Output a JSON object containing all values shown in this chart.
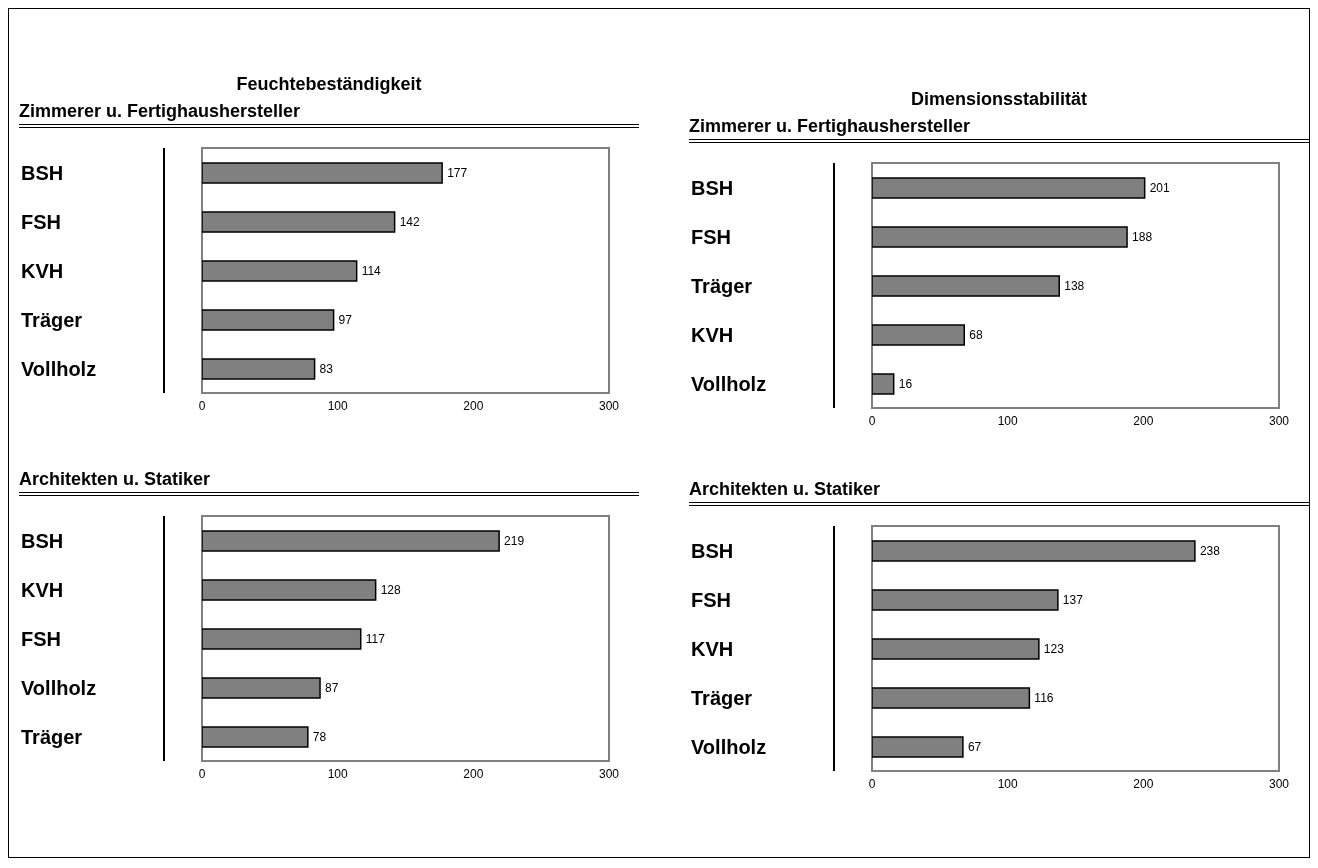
{
  "chart_data": [
    {
      "type": "bar",
      "orientation": "horizontal",
      "title": "Feuchtebeständigkeit",
      "subtitle": "Zimmerer u. Fertighaushersteller",
      "categories": [
        "BSH",
        "FSH",
        "KVH",
        "Träger",
        "Vollholz"
      ],
      "values": [
        177,
        142,
        114,
        97,
        83
      ],
      "color": "#808080",
      "xlim": [
        0,
        300
      ],
      "xticks": [
        0,
        100,
        200,
        300
      ],
      "data_labels": true
    },
    {
      "type": "bar",
      "orientation": "horizontal",
      "title": "Dimensionsstabilität",
      "subtitle": "Zimmerer u. Fertighaushersteller",
      "categories": [
        "BSH",
        "FSH",
        "Träger",
        "KVH",
        "Vollholz"
      ],
      "values": [
        201,
        188,
        138,
        68,
        16
      ],
      "color": "#808080",
      "xlim": [
        0,
        300
      ],
      "xticks": [
        0,
        100,
        200,
        300
      ],
      "data_labels": true
    },
    {
      "type": "bar",
      "orientation": "horizontal",
      "subtitle": "Architekten u. Statiker",
      "categories": [
        "BSH",
        "KVH",
        "FSH",
        "Vollholz",
        "Träger"
      ],
      "values": [
        219,
        128,
        117,
        87,
        78
      ],
      "color": "#808080",
      "xlim": [
        0,
        300
      ],
      "xticks": [
        0,
        100,
        200,
        300
      ],
      "data_labels": true
    },
    {
      "type": "bar",
      "orientation": "horizontal",
      "subtitle": "Architekten u. Statiker",
      "categories": [
        "BSH",
        "FSH",
        "KVH",
        "Träger",
        "Vollholz"
      ],
      "values": [
        238,
        137,
        123,
        116,
        67
      ],
      "color": "#808080",
      "xlim": [
        0,
        300
      ],
      "xticks": [
        0,
        100,
        200,
        300
      ],
      "data_labels": true
    }
  ]
}
